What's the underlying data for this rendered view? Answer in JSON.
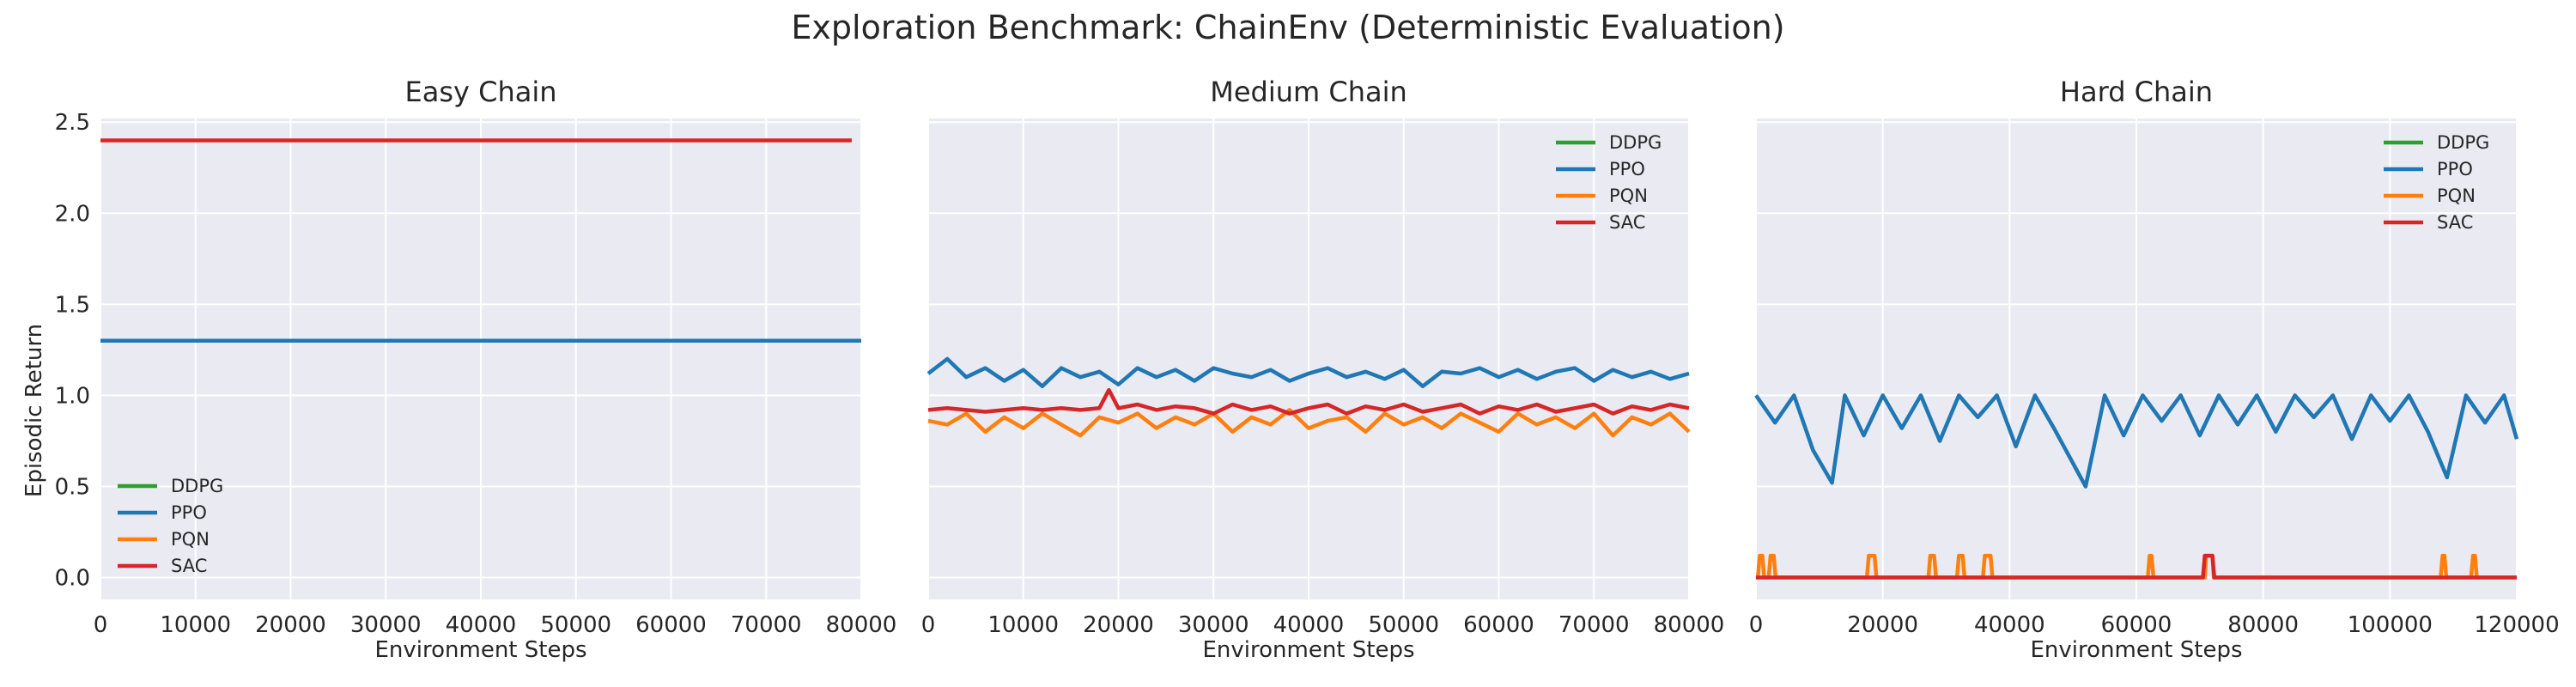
{
  "figure": {
    "title": "Exploration Benchmark: ChainEnv (Deterministic Evaluation)",
    "ylabel": "Episodic Return",
    "xlabel": "Environment Steps"
  },
  "colors": {
    "background": "#eaeaf2",
    "grid": "#ffffff",
    "DDPG": "#2ca02c",
    "PPO": "#1f77b4",
    "PQN": "#ff7f0e",
    "SAC": "#d62728"
  },
  "chart_data": [
    {
      "type": "line",
      "title": "Easy Chain",
      "xlabel": "Environment Steps",
      "ylabel": "Episodic Return",
      "xlim": [
        0,
        80000
      ],
      "ylim": [
        -0.12,
        2.52
      ],
      "xticks": [
        0,
        10000,
        20000,
        30000,
        40000,
        50000,
        60000,
        70000,
        80000
      ],
      "yticks": [
        0.0,
        0.5,
        1.0,
        1.5,
        2.0,
        2.5
      ],
      "ytick_labels": [
        "0.0",
        "0.5",
        "1.0",
        "1.5",
        "2.0",
        "2.5"
      ],
      "grid": true,
      "legend": {
        "position": "lower-left",
        "entries": [
          "DDPG",
          "PPO",
          "PQN",
          "SAC"
        ]
      },
      "series": [
        {
          "name": "SAC",
          "x": [
            0,
            79000
          ],
          "y": [
            2.4,
            2.4
          ]
        },
        {
          "name": "PPO",
          "x": [
            0,
            80000
          ],
          "y": [
            1.3,
            1.3
          ]
        }
      ]
    },
    {
      "type": "line",
      "title": "Medium Chain",
      "xlabel": "Environment Steps",
      "xlim": [
        0,
        80000
      ],
      "ylim": [
        -0.12,
        2.52
      ],
      "xticks": [
        0,
        10000,
        20000,
        30000,
        40000,
        50000,
        60000,
        70000,
        80000
      ],
      "yticks": [
        0.0,
        0.5,
        1.0,
        1.5,
        2.0,
        2.5
      ],
      "grid": true,
      "legend": {
        "position": "top-right",
        "entries": [
          "DDPG",
          "PPO",
          "PQN",
          "SAC"
        ]
      },
      "series": [
        {
          "name": "PQN",
          "x": [
            0,
            2000,
            4000,
            6000,
            8000,
            10000,
            12000,
            14000,
            16000,
            18000,
            20000,
            22000,
            24000,
            26000,
            28000,
            30000,
            32000,
            34000,
            36000,
            38000,
            40000,
            42000,
            44000,
            46000,
            48000,
            50000,
            52000,
            54000,
            56000,
            58000,
            60000,
            62000,
            64000,
            66000,
            68000,
            70000,
            72000,
            74000,
            76000,
            78000,
            80000
          ],
          "y": [
            0.86,
            0.84,
            0.9,
            0.8,
            0.88,
            0.82,
            0.9,
            0.84,
            0.78,
            0.88,
            0.85,
            0.9,
            0.82,
            0.88,
            0.84,
            0.9,
            0.8,
            0.88,
            0.84,
            0.92,
            0.82,
            0.86,
            0.88,
            0.8,
            0.9,
            0.84,
            0.88,
            0.82,
            0.9,
            0.85,
            0.8,
            0.9,
            0.84,
            0.88,
            0.82,
            0.9,
            0.78,
            0.88,
            0.84,
            0.9,
            0.8
          ]
        },
        {
          "name": "SAC",
          "x": [
            0,
            2000,
            4000,
            6000,
            8000,
            10000,
            12000,
            14000,
            16000,
            18000,
            19000,
            20000,
            22000,
            24000,
            26000,
            28000,
            30000,
            32000,
            34000,
            36000,
            38000,
            40000,
            42000,
            44000,
            46000,
            48000,
            50000,
            52000,
            54000,
            56000,
            58000,
            60000,
            62000,
            64000,
            66000,
            68000,
            70000,
            72000,
            74000,
            76000,
            78000,
            80000
          ],
          "y": [
            0.92,
            0.93,
            0.92,
            0.91,
            0.92,
            0.93,
            0.92,
            0.93,
            0.92,
            0.93,
            1.03,
            0.93,
            0.95,
            0.92,
            0.94,
            0.93,
            0.9,
            0.95,
            0.92,
            0.94,
            0.9,
            0.93,
            0.95,
            0.9,
            0.94,
            0.92,
            0.95,
            0.91,
            0.93,
            0.95,
            0.9,
            0.94,
            0.92,
            0.95,
            0.91,
            0.93,
            0.95,
            0.9,
            0.94,
            0.92,
            0.95,
            0.93
          ]
        },
        {
          "name": "PPO",
          "x": [
            0,
            2000,
            4000,
            6000,
            8000,
            10000,
            12000,
            14000,
            16000,
            18000,
            20000,
            22000,
            24000,
            26000,
            28000,
            30000,
            32000,
            34000,
            36000,
            38000,
            40000,
            42000,
            44000,
            46000,
            48000,
            50000,
            52000,
            54000,
            56000,
            58000,
            60000,
            62000,
            64000,
            66000,
            68000,
            70000,
            72000,
            74000,
            76000,
            78000,
            80000
          ],
          "y": [
            1.12,
            1.2,
            1.1,
            1.15,
            1.08,
            1.14,
            1.05,
            1.15,
            1.1,
            1.13,
            1.06,
            1.15,
            1.1,
            1.14,
            1.08,
            1.15,
            1.12,
            1.1,
            1.14,
            1.08,
            1.12,
            1.15,
            1.1,
            1.13,
            1.09,
            1.14,
            1.05,
            1.13,
            1.12,
            1.15,
            1.1,
            1.14,
            1.09,
            1.13,
            1.15,
            1.08,
            1.14,
            1.1,
            1.13,
            1.09,
            1.12
          ]
        }
      ]
    },
    {
      "type": "line",
      "title": "Hard Chain",
      "xlabel": "Environment Steps",
      "xlim": [
        0,
        120000
      ],
      "ylim": [
        -0.12,
        2.52
      ],
      "xticks": [
        0,
        20000,
        40000,
        60000,
        80000,
        100000,
        120000
      ],
      "yticks": [
        0.0,
        0.5,
        1.0,
        1.5,
        2.0,
        2.5
      ],
      "grid": true,
      "legend": {
        "position": "top-right",
        "entries": [
          "DDPG",
          "PPO",
          "PQN",
          "SAC"
        ]
      },
      "series": [
        {
          "name": "PPO",
          "x": [
            0,
            3000,
            6000,
            9000,
            12000,
            14000,
            17000,
            20000,
            23000,
            26000,
            29000,
            32000,
            35000,
            38000,
            41000,
            44000,
            47000,
            52000,
            55000,
            58000,
            61000,
            64000,
            67000,
            70000,
            73000,
            76000,
            79000,
            82000,
            85000,
            88000,
            91000,
            94000,
            97000,
            100000,
            103000,
            106000,
            109000,
            112000,
            115000,
            118000,
            120000
          ],
          "y": [
            1.0,
            0.85,
            1.0,
            0.7,
            0.52,
            1.0,
            0.78,
            1.0,
            0.82,
            1.0,
            0.75,
            1.0,
            0.88,
            1.0,
            0.72,
            1.0,
            0.82,
            0.5,
            1.0,
            0.78,
            1.0,
            0.86,
            1.0,
            0.78,
            1.0,
            0.84,
            1.0,
            0.8,
            1.0,
            0.88,
            1.0,
            0.76,
            1.0,
            0.86,
            1.0,
            0.8,
            0.55,
            1.0,
            0.85,
            1.0,
            0.76
          ]
        },
        {
          "name": "PQN",
          "x": [
            0,
            300,
            600,
            1000,
            1300,
            2000,
            2300,
            2800,
            3100,
            17500,
            17800,
            18700,
            19000,
            27200,
            27500,
            28100,
            28400,
            31700,
            32000,
            32600,
            32900,
            35800,
            36100,
            37000,
            37300,
            61800,
            62100,
            62400,
            62700,
            70800,
            71000,
            72000,
            72200,
            108000,
            108300,
            108600,
            108900,
            112800,
            113100,
            113400,
            113700,
            120000
          ],
          "y": [
            0.0,
            0.0,
            0.12,
            0.12,
            0.0,
            0.0,
            0.12,
            0.12,
            0.0,
            0.0,
            0.12,
            0.12,
            0.0,
            0.0,
            0.12,
            0.12,
            0.0,
            0.0,
            0.12,
            0.12,
            0.0,
            0.0,
            0.12,
            0.12,
            0.0,
            0.0,
            0.12,
            0.12,
            0.0,
            0.0,
            0.12,
            0.12,
            0.0,
            0.0,
            0.12,
            0.12,
            0.0,
            0.0,
            0.12,
            0.12,
            0.0,
            0.0
          ]
        },
        {
          "name": "SAC",
          "x": [
            0,
            70500,
            70800,
            72000,
            72300,
            120000
          ],
          "y": [
            0.0,
            0.0,
            0.12,
            0.12,
            0.0,
            0.0
          ]
        }
      ]
    }
  ]
}
